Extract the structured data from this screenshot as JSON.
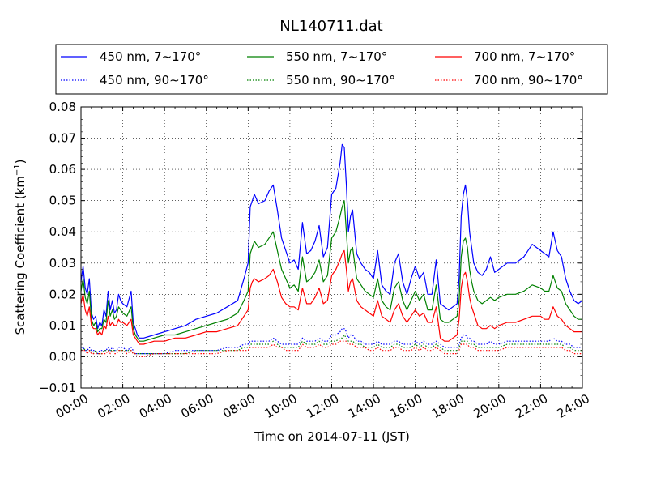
{
  "chart_data": {
    "type": "line",
    "title": "NL140711.dat",
    "xlabel": "Time on 2014-07-11 (JST)",
    "ylabel_main": "Scattering Coefficient (km",
    "ylabel_sup": "−1",
    "ylabel_end": ")",
    "xlim": [
      0,
      24
    ],
    "ylim": [
      -0.01,
      0.08
    ],
    "x_ticks": [
      0,
      2,
      4,
      6,
      8,
      10,
      12,
      14,
      16,
      18,
      20,
      22,
      24
    ],
    "x_tick_labels": [
      "00:00",
      "02:00",
      "04:00",
      "06:00",
      "08:00",
      "10:00",
      "12:00",
      "14:00",
      "16:00",
      "18:00",
      "20:00",
      "22:00",
      "24:00"
    ],
    "y_ticks": [
      -0.01,
      0.0,
      0.01,
      0.02,
      0.03,
      0.04,
      0.05,
      0.06,
      0.07,
      0.08
    ],
    "y_tick_labels": [
      "−0.01",
      "0.00",
      "0.01",
      "0.02",
      "0.03",
      "0.04",
      "0.05",
      "0.06",
      "0.07",
      "0.08"
    ],
    "grid": true,
    "legend_position": "top-outside",
    "x": [
      0,
      0.1,
      0.2,
      0.3,
      0.4,
      0.5,
      0.6,
      0.7,
      0.8,
      0.9,
      1.0,
      1.1,
      1.2,
      1.3,
      1.4,
      1.5,
      1.6,
      1.7,
      1.8,
      1.9,
      2.0,
      2.2,
      2.4,
      2.5,
      2.6,
      2.7,
      2.8,
      3.0,
      3.5,
      4.0,
      4.5,
      5.0,
      5.5,
      6.0,
      6.5,
      7.0,
      7.5,
      7.8,
      8.0,
      8.1,
      8.2,
      8.3,
      8.5,
      8.8,
      9.0,
      9.2,
      9.4,
      9.6,
      9.8,
      10.0,
      10.2,
      10.4,
      10.6,
      10.8,
      11.0,
      11.2,
      11.4,
      11.6,
      11.8,
      12.0,
      12.2,
      12.4,
      12.5,
      12.6,
      12.7,
      12.8,
      12.9,
      13.0,
      13.2,
      13.4,
      13.6,
      13.8,
      14.0,
      14.2,
      14.4,
      14.6,
      14.8,
      15.0,
      15.2,
      15.4,
      15.6,
      15.8,
      16.0,
      16.2,
      16.4,
      16.6,
      16.8,
      17.0,
      17.2,
      17.4,
      17.6,
      17.8,
      18.0,
      18.1,
      18.2,
      18.3,
      18.4,
      18.5,
      18.6,
      18.7,
      18.8,
      19.0,
      19.2,
      19.4,
      19.6,
      19.8,
      20.0,
      20.4,
      20.8,
      21.2,
      21.6,
      22.0,
      22.2,
      22.4,
      22.6,
      22.8,
      23.0,
      23.2,
      23.4,
      23.6,
      23.8,
      24.0
    ],
    "series": [
      {
        "name": "450 nm, 7∼170°",
        "color": "#0000ff",
        "style": "solid",
        "values": [
          0.024,
          0.029,
          0.022,
          0.02,
          0.025,
          0.014,
          0.012,
          0.013,
          0.009,
          0.011,
          0.01,
          0.015,
          0.013,
          0.021,
          0.015,
          0.018,
          0.014,
          0.015,
          0.02,
          0.018,
          0.017,
          0.016,
          0.021,
          0.011,
          0.009,
          0.007,
          0.006,
          0.006,
          0.007,
          0.008,
          0.009,
          0.01,
          0.012,
          0.013,
          0.014,
          0.016,
          0.018,
          0.025,
          0.03,
          0.048,
          0.05,
          0.052,
          0.049,
          0.05,
          0.053,
          0.055,
          0.047,
          0.038,
          0.034,
          0.03,
          0.031,
          0.028,
          0.043,
          0.033,
          0.034,
          0.037,
          0.042,
          0.032,
          0.035,
          0.052,
          0.054,
          0.062,
          0.068,
          0.067,
          0.055,
          0.04,
          0.045,
          0.047,
          0.033,
          0.03,
          0.028,
          0.027,
          0.025,
          0.034,
          0.023,
          0.021,
          0.02,
          0.03,
          0.033,
          0.024,
          0.02,
          0.025,
          0.029,
          0.025,
          0.027,
          0.02,
          0.02,
          0.031,
          0.017,
          0.016,
          0.015,
          0.016,
          0.017,
          0.025,
          0.045,
          0.052,
          0.055,
          0.05,
          0.04,
          0.035,
          0.03,
          0.027,
          0.026,
          0.028,
          0.032,
          0.027,
          0.028,
          0.03,
          0.03,
          0.032,
          0.036,
          0.034,
          0.033,
          0.032,
          0.04,
          0.034,
          0.032,
          0.025,
          0.021,
          0.018,
          0.017,
          0.018
        ]
      },
      {
        "name": "550 nm, 7∼170°",
        "color": "#008000",
        "style": "solid",
        "values": [
          0.021,
          0.025,
          0.019,
          0.017,
          0.021,
          0.012,
          0.01,
          0.011,
          0.008,
          0.009,
          0.009,
          0.012,
          0.011,
          0.018,
          0.013,
          0.015,
          0.012,
          0.013,
          0.016,
          0.015,
          0.014,
          0.013,
          0.016,
          0.009,
          0.007,
          0.006,
          0.005,
          0.005,
          0.006,
          0.007,
          0.007,
          0.008,
          0.009,
          0.01,
          0.011,
          0.012,
          0.014,
          0.018,
          0.021,
          0.033,
          0.035,
          0.037,
          0.035,
          0.036,
          0.038,
          0.04,
          0.034,
          0.028,
          0.025,
          0.022,
          0.023,
          0.021,
          0.032,
          0.024,
          0.025,
          0.027,
          0.031,
          0.024,
          0.026,
          0.038,
          0.04,
          0.045,
          0.048,
          0.05,
          0.04,
          0.03,
          0.034,
          0.035,
          0.025,
          0.023,
          0.021,
          0.02,
          0.019,
          0.025,
          0.018,
          0.016,
          0.015,
          0.022,
          0.024,
          0.018,
          0.015,
          0.018,
          0.021,
          0.018,
          0.02,
          0.015,
          0.015,
          0.023,
          0.012,
          0.011,
          0.011,
          0.012,
          0.013,
          0.018,
          0.032,
          0.037,
          0.038,
          0.035,
          0.028,
          0.024,
          0.021,
          0.018,
          0.017,
          0.018,
          0.019,
          0.018,
          0.019,
          0.02,
          0.02,
          0.021,
          0.023,
          0.022,
          0.021,
          0.021,
          0.026,
          0.022,
          0.021,
          0.017,
          0.015,
          0.013,
          0.012,
          0.012
        ]
      },
      {
        "name": "700 nm, 7∼170°",
        "color": "#ff0000",
        "style": "solid",
        "values": [
          0.017,
          0.02,
          0.015,
          0.013,
          0.016,
          0.01,
          0.009,
          0.009,
          0.007,
          0.008,
          0.007,
          0.01,
          0.009,
          0.013,
          0.01,
          0.011,
          0.01,
          0.01,
          0.012,
          0.011,
          0.011,
          0.01,
          0.012,
          0.007,
          0.006,
          0.005,
          0.004,
          0.004,
          0.005,
          0.005,
          0.006,
          0.006,
          0.007,
          0.008,
          0.008,
          0.009,
          0.01,
          0.013,
          0.015,
          0.022,
          0.024,
          0.025,
          0.024,
          0.025,
          0.026,
          0.028,
          0.024,
          0.019,
          0.017,
          0.016,
          0.016,
          0.015,
          0.022,
          0.017,
          0.017,
          0.019,
          0.022,
          0.017,
          0.018,
          0.026,
          0.028,
          0.031,
          0.033,
          0.034,
          0.028,
          0.021,
          0.024,
          0.025,
          0.018,
          0.016,
          0.015,
          0.014,
          0.013,
          0.018,
          0.013,
          0.012,
          0.011,
          0.015,
          0.017,
          0.013,
          0.011,
          0.013,
          0.015,
          0.013,
          0.014,
          0.011,
          0.011,
          0.016,
          0.006,
          0.005,
          0.005,
          0.006,
          0.007,
          0.012,
          0.022,
          0.026,
          0.027,
          0.024,
          0.019,
          0.016,
          0.014,
          0.01,
          0.009,
          0.009,
          0.01,
          0.009,
          0.01,
          0.011,
          0.011,
          0.012,
          0.013,
          0.013,
          0.012,
          0.012,
          0.016,
          0.013,
          0.012,
          0.01,
          0.009,
          0.008,
          0.008,
          0.008
        ]
      },
      {
        "name": "450 nm, 90∼170°",
        "color": "#0000ff",
        "style": "dotted",
        "values": [
          0.003,
          0.003,
          0.002,
          0.002,
          0.003,
          0.002,
          0.002,
          0.002,
          0.001,
          0.002,
          0.002,
          0.002,
          0.002,
          0.003,
          0.002,
          0.003,
          0.002,
          0.002,
          0.003,
          0.003,
          0.003,
          0.002,
          0.003,
          0.002,
          0.001,
          0.001,
          0.001,
          0.001,
          0.001,
          0.001,
          0.002,
          0.002,
          0.002,
          0.002,
          0.002,
          0.003,
          0.003,
          0.004,
          0.004,
          0.005,
          0.005,
          0.005,
          0.005,
          0.005,
          0.005,
          0.006,
          0.005,
          0.004,
          0.004,
          0.004,
          0.004,
          0.004,
          0.006,
          0.005,
          0.005,
          0.005,
          0.006,
          0.005,
          0.005,
          0.007,
          0.007,
          0.008,
          0.009,
          0.009,
          0.008,
          0.006,
          0.007,
          0.007,
          0.005,
          0.005,
          0.004,
          0.004,
          0.004,
          0.005,
          0.004,
          0.004,
          0.004,
          0.005,
          0.005,
          0.004,
          0.004,
          0.004,
          0.005,
          0.004,
          0.005,
          0.004,
          0.004,
          0.005,
          0.004,
          0.003,
          0.003,
          0.003,
          0.003,
          0.004,
          0.006,
          0.007,
          0.007,
          0.006,
          0.006,
          0.005,
          0.005,
          0.004,
          0.004,
          0.004,
          0.005,
          0.004,
          0.004,
          0.005,
          0.005,
          0.005,
          0.005,
          0.005,
          0.005,
          0.005,
          0.006,
          0.005,
          0.005,
          0.004,
          0.004,
          0.003,
          0.003,
          0.003
        ]
      },
      {
        "name": "550 nm, 90∼170°",
        "color": "#008000",
        "style": "dotted",
        "values": [
          0.002,
          0.003,
          0.002,
          0.002,
          0.002,
          0.002,
          0.001,
          0.002,
          0.001,
          0.001,
          0.001,
          0.002,
          0.002,
          0.002,
          0.002,
          0.002,
          0.002,
          0.002,
          0.002,
          0.002,
          0.002,
          0.002,
          0.002,
          0.001,
          0.001,
          0.001,
          0.001,
          0.001,
          0.001,
          0.001,
          0.001,
          0.001,
          0.002,
          0.002,
          0.002,
          0.002,
          0.002,
          0.003,
          0.003,
          0.004,
          0.004,
          0.004,
          0.004,
          0.004,
          0.004,
          0.005,
          0.004,
          0.003,
          0.003,
          0.003,
          0.003,
          0.003,
          0.005,
          0.004,
          0.004,
          0.004,
          0.005,
          0.004,
          0.004,
          0.005,
          0.005,
          0.006,
          0.006,
          0.007,
          0.006,
          0.005,
          0.005,
          0.005,
          0.004,
          0.004,
          0.003,
          0.003,
          0.003,
          0.004,
          0.003,
          0.003,
          0.003,
          0.004,
          0.004,
          0.003,
          0.003,
          0.003,
          0.004,
          0.003,
          0.004,
          0.003,
          0.003,
          0.004,
          0.003,
          0.002,
          0.002,
          0.002,
          0.002,
          0.003,
          0.005,
          0.005,
          0.005,
          0.005,
          0.004,
          0.004,
          0.004,
          0.003,
          0.003,
          0.003,
          0.003,
          0.003,
          0.003,
          0.004,
          0.004,
          0.004,
          0.004,
          0.004,
          0.004,
          0.004,
          0.004,
          0.004,
          0.004,
          0.003,
          0.003,
          0.002,
          0.002,
          0.002
        ]
      },
      {
        "name": "700 nm, 90∼170°",
        "color": "#ff0000",
        "style": "dotted",
        "values": [
          0.002,
          0.002,
          0.002,
          0.001,
          0.002,
          0.001,
          0.001,
          0.001,
          0.001,
          0.001,
          0.001,
          0.001,
          0.001,
          0.002,
          0.001,
          0.002,
          0.001,
          0.001,
          0.002,
          0.002,
          0.002,
          0.001,
          0.002,
          0.001,
          0.001,
          0.0,
          0.0,
          0.0,
          0.001,
          0.001,
          0.001,
          0.001,
          0.001,
          0.001,
          0.001,
          0.002,
          0.002,
          0.002,
          0.002,
          0.003,
          0.003,
          0.003,
          0.003,
          0.003,
          0.003,
          0.004,
          0.003,
          0.003,
          0.002,
          0.002,
          0.002,
          0.002,
          0.004,
          0.003,
          0.003,
          0.003,
          0.004,
          0.003,
          0.003,
          0.004,
          0.004,
          0.005,
          0.005,
          0.005,
          0.005,
          0.004,
          0.004,
          0.004,
          0.003,
          0.003,
          0.003,
          0.002,
          0.002,
          0.003,
          0.002,
          0.002,
          0.002,
          0.003,
          0.003,
          0.002,
          0.002,
          0.002,
          0.003,
          0.002,
          0.003,
          0.002,
          0.002,
          0.003,
          0.002,
          0.001,
          0.001,
          0.001,
          0.001,
          0.002,
          0.004,
          0.004,
          0.004,
          0.004,
          0.003,
          0.003,
          0.003,
          0.002,
          0.002,
          0.002,
          0.002,
          0.002,
          0.002,
          0.003,
          0.003,
          0.003,
          0.003,
          0.003,
          0.003,
          0.003,
          0.003,
          0.003,
          0.003,
          0.002,
          0.002,
          0.001,
          0.001,
          0.001
        ]
      }
    ]
  }
}
